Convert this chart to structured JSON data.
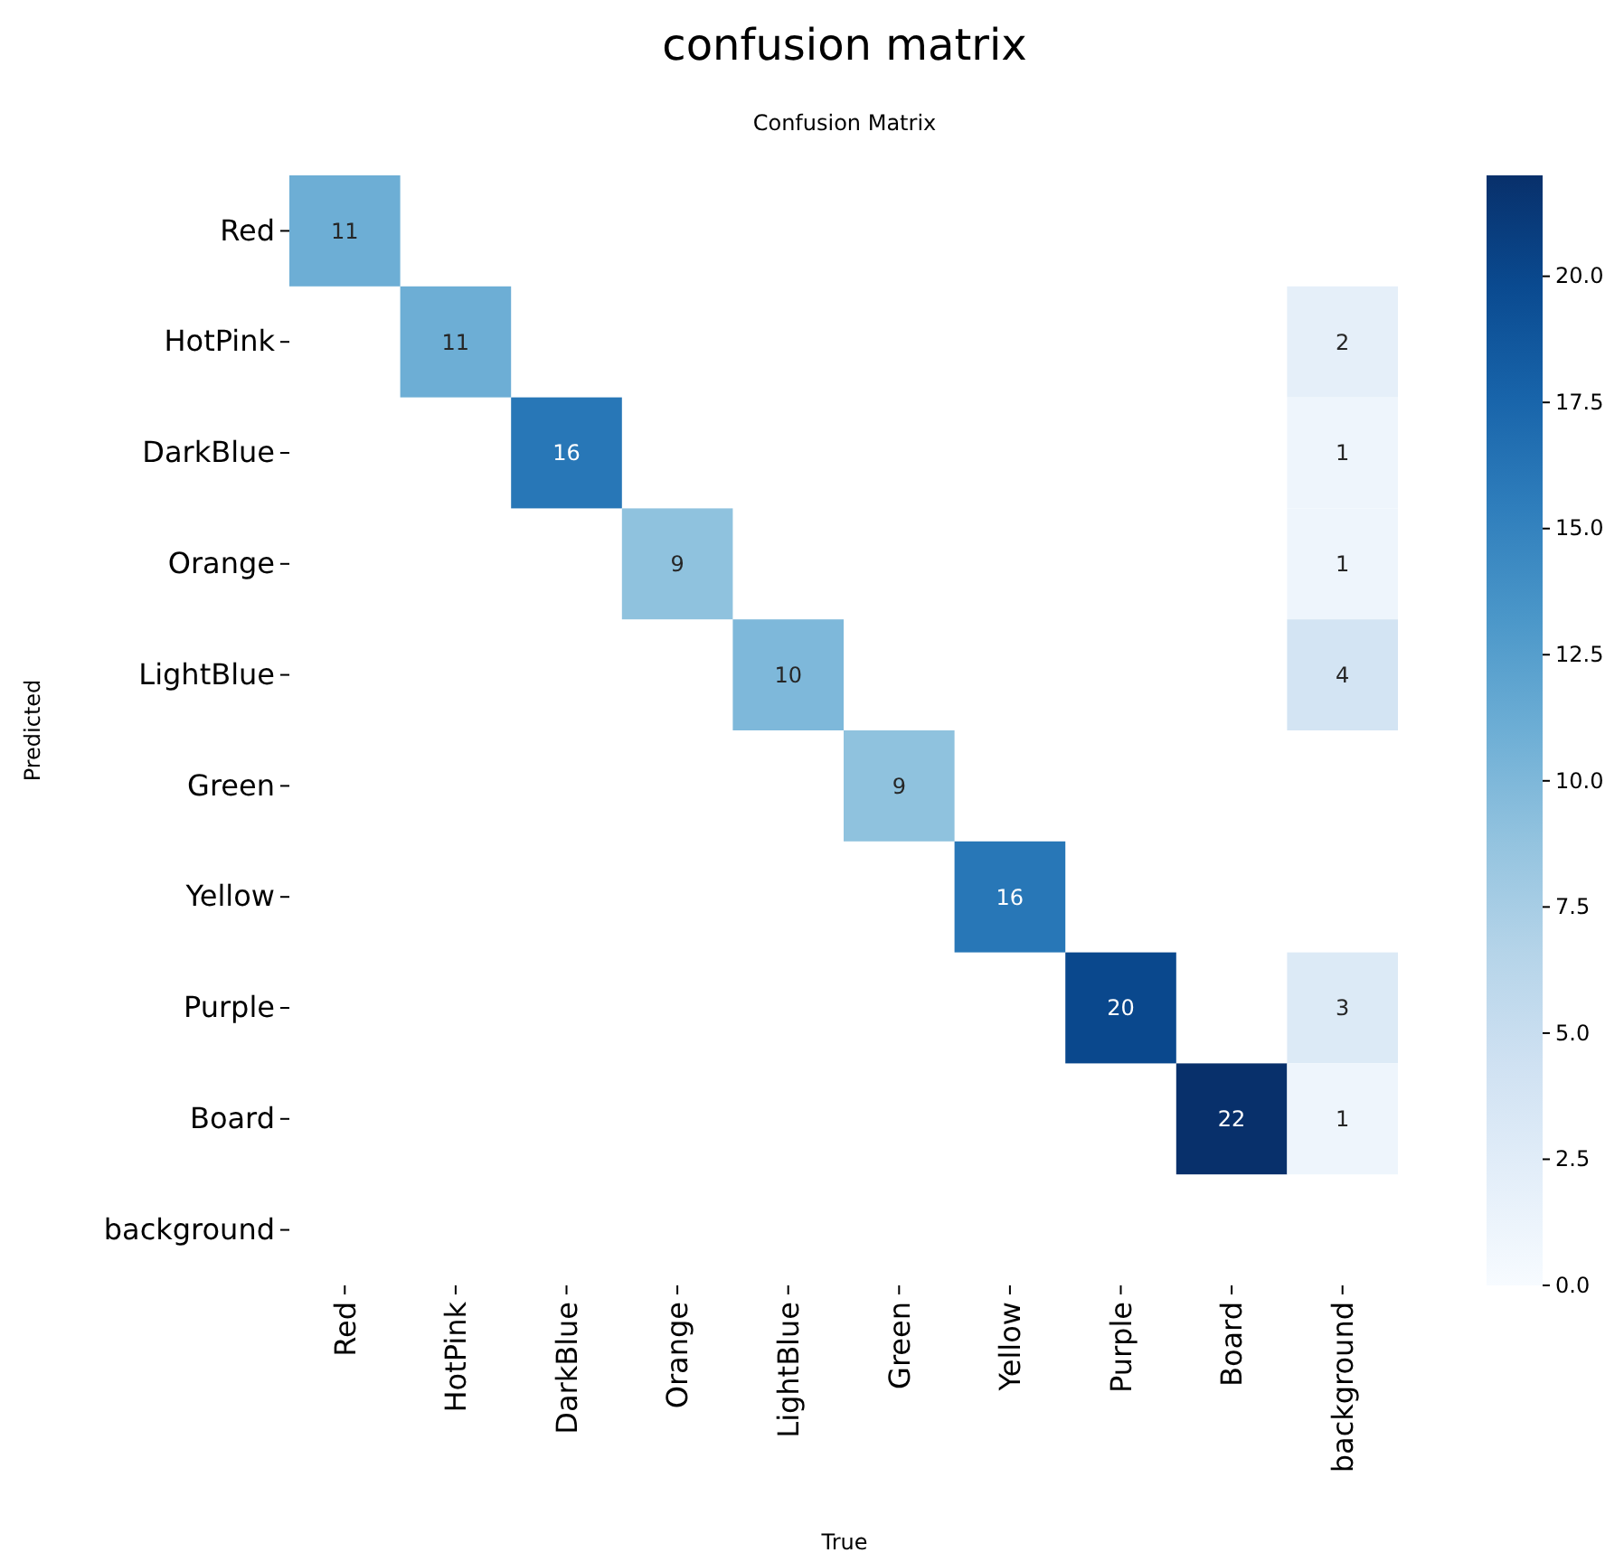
{
  "chart_data": {
    "type": "heatmap",
    "title": "confusion matrix",
    "subtitle": "Confusion Matrix",
    "xlabel": "True",
    "ylabel": "Predicted",
    "categories": [
      "Red",
      "HotPink",
      "DarkBlue",
      "Orange",
      "LightBlue",
      "Green",
      "Yellow",
      "Purple",
      "Board",
      "background"
    ],
    "y_categories": [
      "Red",
      "HotPink",
      "DarkBlue",
      "Orange",
      "LightBlue",
      "Green",
      "Yellow",
      "Purple",
      "Board",
      "background"
    ],
    "cells": [
      [
        11,
        null,
        null,
        null,
        null,
        null,
        null,
        null,
        null,
        null
      ],
      [
        null,
        11,
        null,
        null,
        null,
        null,
        null,
        null,
        null,
        2
      ],
      [
        null,
        null,
        16,
        null,
        null,
        null,
        null,
        null,
        null,
        1
      ],
      [
        null,
        null,
        null,
        9,
        null,
        null,
        null,
        null,
        null,
        1
      ],
      [
        null,
        null,
        null,
        null,
        10,
        null,
        null,
        null,
        null,
        4
      ],
      [
        null,
        null,
        null,
        null,
        null,
        9,
        null,
        null,
        null,
        null
      ],
      [
        null,
        null,
        null,
        null,
        null,
        null,
        16,
        null,
        null,
        null
      ],
      [
        null,
        null,
        null,
        null,
        null,
        null,
        null,
        20,
        null,
        3
      ],
      [
        null,
        null,
        null,
        null,
        null,
        null,
        null,
        null,
        22,
        1
      ],
      [
        null,
        null,
        null,
        null,
        null,
        null,
        null,
        null,
        null,
        null
      ]
    ],
    "data_labels": true,
    "clim": [
      0,
      22
    ],
    "cticks": [
      {
        "value": 0,
        "label": "0.0"
      },
      {
        "value": 2.5,
        "label": "2.5"
      },
      {
        "value": 5,
        "label": "5.0"
      },
      {
        "value": 7.5,
        "label": "7.5"
      },
      {
        "value": 10,
        "label": "10.0"
      },
      {
        "value": 12.5,
        "label": "12.5"
      },
      {
        "value": 15,
        "label": "15.0"
      },
      {
        "value": 17.5,
        "label": "17.5"
      },
      {
        "value": 20,
        "label": "20.0"
      }
    ]
  }
}
